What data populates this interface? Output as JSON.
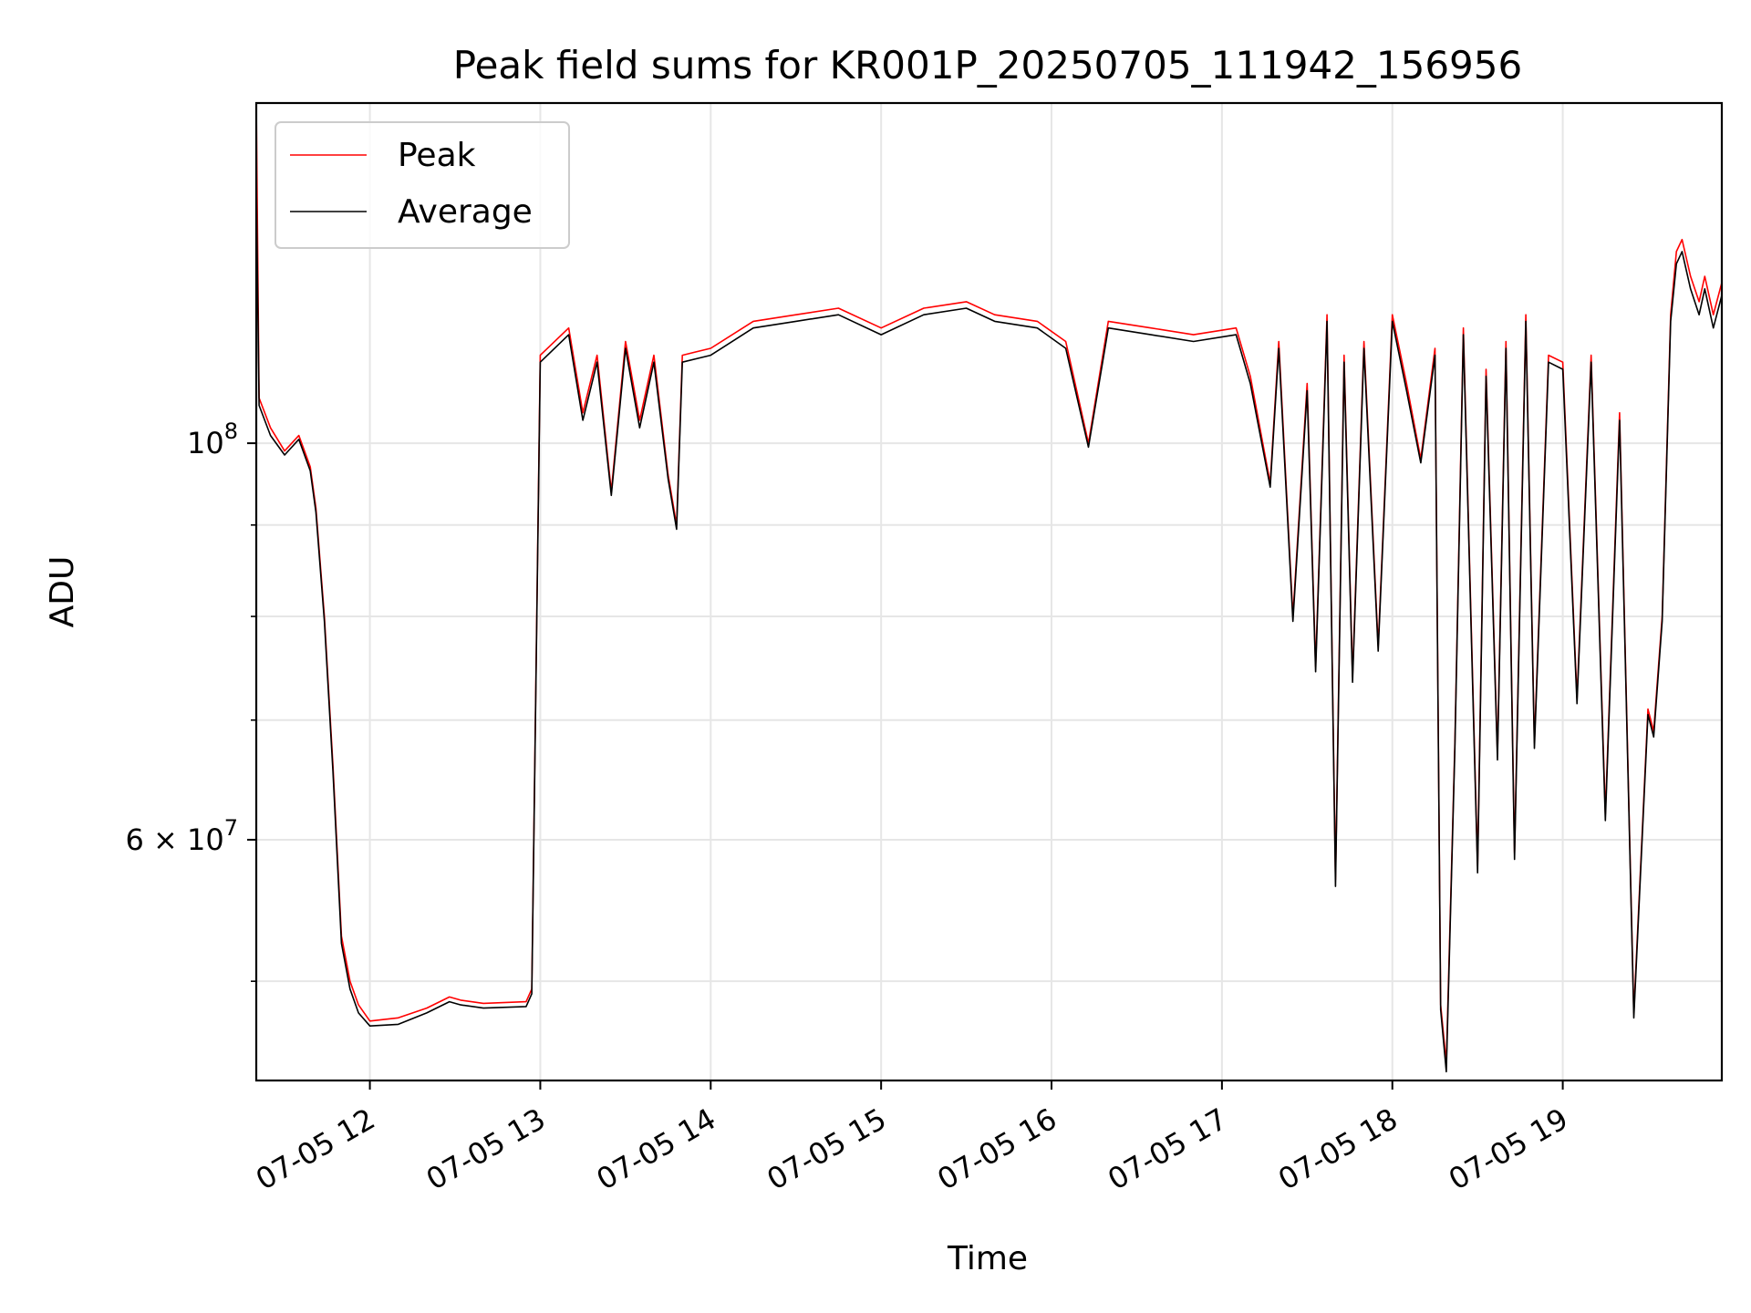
{
  "chart_data": {
    "type": "line",
    "title": "Peak field sums for KR001P_20250705_111942_156956",
    "xlabel": "Time",
    "ylabel": "ADU",
    "y_scale": "log",
    "ylim": [
      44000000,
      155000000
    ],
    "xlim": [
      "2025-07-05 11:20",
      "2025-07-05 19:56"
    ],
    "grid": true,
    "legend_position": "top-left",
    "x_ticks": [
      {
        "value": "2025-07-05 12:00",
        "label": "07-05 12"
      },
      {
        "value": "2025-07-05 13:00",
        "label": "07-05 13"
      },
      {
        "value": "2025-07-05 14:00",
        "label": "07-05 14"
      },
      {
        "value": "2025-07-05 15:00",
        "label": "07-05 15"
      },
      {
        "value": "2025-07-05 16:00",
        "label": "07-05 16"
      },
      {
        "value": "2025-07-05 17:00",
        "label": "07-05 17"
      },
      {
        "value": "2025-07-05 18:00",
        "label": "07-05 18"
      },
      {
        "value": "2025-07-05 19:00",
        "label": "07-05 19"
      }
    ],
    "y_major_ticks": [
      {
        "value": 100000000,
        "base": "10",
        "exp": "8",
        "label_kind": "power"
      },
      {
        "value": 60000000,
        "coef": "6",
        "base": "10",
        "exp": "7",
        "label_kind": "sci"
      }
    ],
    "y_minor_ticks": [
      50000000,
      70000000,
      80000000,
      90000000
    ],
    "series": [
      {
        "name": "Peak",
        "color": "#ff0000",
        "x": [
          "2025-07-05 11:20",
          "2025-07-05 11:21",
          "2025-07-05 11:25",
          "2025-07-05 11:30",
          "2025-07-05 11:35",
          "2025-07-05 11:39",
          "2025-07-05 11:41",
          "2025-07-05 11:44",
          "2025-07-05 11:47",
          "2025-07-05 11:50",
          "2025-07-05 11:53",
          "2025-07-05 11:56",
          "2025-07-05 12:00",
          "2025-07-05 12:10",
          "2025-07-05 12:20",
          "2025-07-05 12:28",
          "2025-07-05 12:32",
          "2025-07-05 12:40",
          "2025-07-05 12:55",
          "2025-07-05 12:57",
          "2025-07-05 13:00",
          "2025-07-05 13:10",
          "2025-07-05 13:15",
          "2025-07-05 13:20",
          "2025-07-05 13:25",
          "2025-07-05 13:30",
          "2025-07-05 13:35",
          "2025-07-05 13:40",
          "2025-07-05 13:45",
          "2025-07-05 13:48",
          "2025-07-05 13:50",
          "2025-07-05 14:00",
          "2025-07-05 14:15",
          "2025-07-05 14:30",
          "2025-07-05 14:45",
          "2025-07-05 15:00",
          "2025-07-05 15:15",
          "2025-07-05 15:30",
          "2025-07-05 15:40",
          "2025-07-05 15:55",
          "2025-07-05 16:05",
          "2025-07-05 16:13",
          "2025-07-05 16:20",
          "2025-07-05 16:35",
          "2025-07-05 16:50",
          "2025-07-05 17:05",
          "2025-07-05 17:10",
          "2025-07-05 17:17",
          "2025-07-05 17:20",
          "2025-07-05 17:25",
          "2025-07-05 17:30",
          "2025-07-05 17:33",
          "2025-07-05 17:37",
          "2025-07-05 17:40",
          "2025-07-05 17:43",
          "2025-07-05 17:46",
          "2025-07-05 17:50",
          "2025-07-05 17:55",
          "2025-07-05 18:00",
          "2025-07-05 18:05",
          "2025-07-05 18:10",
          "2025-07-05 18:15",
          "2025-07-05 18:17",
          "2025-07-05 18:19",
          "2025-07-05 18:22",
          "2025-07-05 18:25",
          "2025-07-05 18:30",
          "2025-07-05 18:33",
          "2025-07-05 18:37",
          "2025-07-05 18:40",
          "2025-07-05 18:43",
          "2025-07-05 18:47",
          "2025-07-05 18:50",
          "2025-07-05 18:55",
          "2025-07-05 19:00",
          "2025-07-05 19:05",
          "2025-07-05 19:10",
          "2025-07-05 19:15",
          "2025-07-05 19:20",
          "2025-07-05 19:25",
          "2025-07-05 19:30",
          "2025-07-05 19:32",
          "2025-07-05 19:35",
          "2025-07-05 19:38",
          "2025-07-05 19:40",
          "2025-07-05 19:42",
          "2025-07-05 19:45",
          "2025-07-05 19:48",
          "2025-07-05 19:50",
          "2025-07-05 19:53",
          "2025-07-05 19:56"
        ],
        "y": [
          158000000,
          106000000,
          102000000,
          99000000,
          101000000,
          97000000,
          92000000,
          80000000,
          66000000,
          53000000,
          50000000,
          48500000,
          47500000,
          47700000,
          48300000,
          49000000,
          48800000,
          48600000,
          48700000,
          49500000,
          112000000,
          116000000,
          104000000,
          112000000,
          94000000,
          114000000,
          103000000,
          112000000,
          96000000,
          90000000,
          112000000,
          113000000,
          117000000,
          118000000,
          119000000,
          116000000,
          119000000,
          120000000,
          118000000,
          117000000,
          114000000,
          100000000,
          117000000,
          116000000,
          115000000,
          116000000,
          109000000,
          95000000,
          114000000,
          80000000,
          108000000,
          75000000,
          118000000,
          57000000,
          112000000,
          74000000,
          114000000,
          77000000,
          118000000,
          108000000,
          98000000,
          113000000,
          48500000,
          45000000,
          68000000,
          116000000,
          58000000,
          110000000,
          67000000,
          114000000,
          59000000,
          118000000,
          68000000,
          112000000,
          111000000,
          72000000,
          112000000,
          62000000,
          104000000,
          48000000,
          71000000,
          69000000,
          80000000,
          118000000,
          128000000,
          130000000,
          124000000,
          120000000,
          124000000,
          118000000,
          123000000
        ]
      },
      {
        "name": "Average",
        "color": "#000000",
        "x": [
          "2025-07-05 11:20",
          "2025-07-05 11:21",
          "2025-07-05 11:25",
          "2025-07-05 11:30",
          "2025-07-05 11:35",
          "2025-07-05 11:39",
          "2025-07-05 11:41",
          "2025-07-05 11:44",
          "2025-07-05 11:47",
          "2025-07-05 11:50",
          "2025-07-05 11:53",
          "2025-07-05 11:56",
          "2025-07-05 12:00",
          "2025-07-05 12:10",
          "2025-07-05 12:20",
          "2025-07-05 12:28",
          "2025-07-05 12:32",
          "2025-07-05 12:40",
          "2025-07-05 12:55",
          "2025-07-05 12:57",
          "2025-07-05 13:00",
          "2025-07-05 13:10",
          "2025-07-05 13:15",
          "2025-07-05 13:20",
          "2025-07-05 13:25",
          "2025-07-05 13:30",
          "2025-07-05 13:35",
          "2025-07-05 13:40",
          "2025-07-05 13:45",
          "2025-07-05 13:48",
          "2025-07-05 13:50",
          "2025-07-05 14:00",
          "2025-07-05 14:15",
          "2025-07-05 14:30",
          "2025-07-05 14:45",
          "2025-07-05 15:00",
          "2025-07-05 15:15",
          "2025-07-05 15:30",
          "2025-07-05 15:40",
          "2025-07-05 15:55",
          "2025-07-05 16:05",
          "2025-07-05 16:13",
          "2025-07-05 16:20",
          "2025-07-05 16:35",
          "2025-07-05 16:50",
          "2025-07-05 17:05",
          "2025-07-05 17:10",
          "2025-07-05 17:17",
          "2025-07-05 17:20",
          "2025-07-05 17:25",
          "2025-07-05 17:30",
          "2025-07-05 17:33",
          "2025-07-05 17:37",
          "2025-07-05 17:40",
          "2025-07-05 17:43",
          "2025-07-05 17:46",
          "2025-07-05 17:50",
          "2025-07-05 17:55",
          "2025-07-05 18:00",
          "2025-07-05 18:05",
          "2025-07-05 18:10",
          "2025-07-05 18:15",
          "2025-07-05 18:17",
          "2025-07-05 18:19",
          "2025-07-05 18:22",
          "2025-07-05 18:25",
          "2025-07-05 18:30",
          "2025-07-05 18:33",
          "2025-07-05 18:37",
          "2025-07-05 18:40",
          "2025-07-05 18:43",
          "2025-07-05 18:47",
          "2025-07-05 18:50",
          "2025-07-05 18:55",
          "2025-07-05 19:00",
          "2025-07-05 19:05",
          "2025-07-05 19:10",
          "2025-07-05 19:15",
          "2025-07-05 19:20",
          "2025-07-05 19:25",
          "2025-07-05 19:30",
          "2025-07-05 19:32",
          "2025-07-05 19:35",
          "2025-07-05 19:38",
          "2025-07-05 19:40",
          "2025-07-05 19:42",
          "2025-07-05 19:45",
          "2025-07-05 19:48",
          "2025-07-05 19:50",
          "2025-07-05 19:53",
          "2025-07-05 19:56"
        ],
        "y": [
          140000000,
          105000000,
          101000000,
          98500000,
          100500000,
          96500000,
          91500000,
          79500000,
          65500000,
          52500000,
          49500000,
          48000000,
          47200000,
          47300000,
          48000000,
          48700000,
          48500000,
          48300000,
          48400000,
          49200000,
          111000000,
          115000000,
          103000000,
          111000000,
          93500000,
          113000000,
          102000000,
          111000000,
          95500000,
          89500000,
          111000000,
          112000000,
          116000000,
          117000000,
          118000000,
          115000000,
          118000000,
          119000000,
          117000000,
          116000000,
          113000000,
          99500000,
          116000000,
          115000000,
          114000000,
          115000000,
          108000000,
          94500000,
          113000000,
          79500000,
          107000000,
          74500000,
          117000000,
          56500000,
          111000000,
          73500000,
          113000000,
          76500000,
          117000000,
          107000000,
          97500000,
          112000000,
          48200000,
          44500000,
          67500000,
          115000000,
          57500000,
          109000000,
          66500000,
          113000000,
          58500000,
          117000000,
          67500000,
          111000000,
          110000000,
          71500000,
          111000000,
          61500000,
          103000000,
          47700000,
          70500000,
          68500000,
          79500000,
          117000000,
          126000000,
          128000000,
          122000000,
          118000000,
          122000000,
          116000000,
          121000000
        ]
      }
    ]
  }
}
